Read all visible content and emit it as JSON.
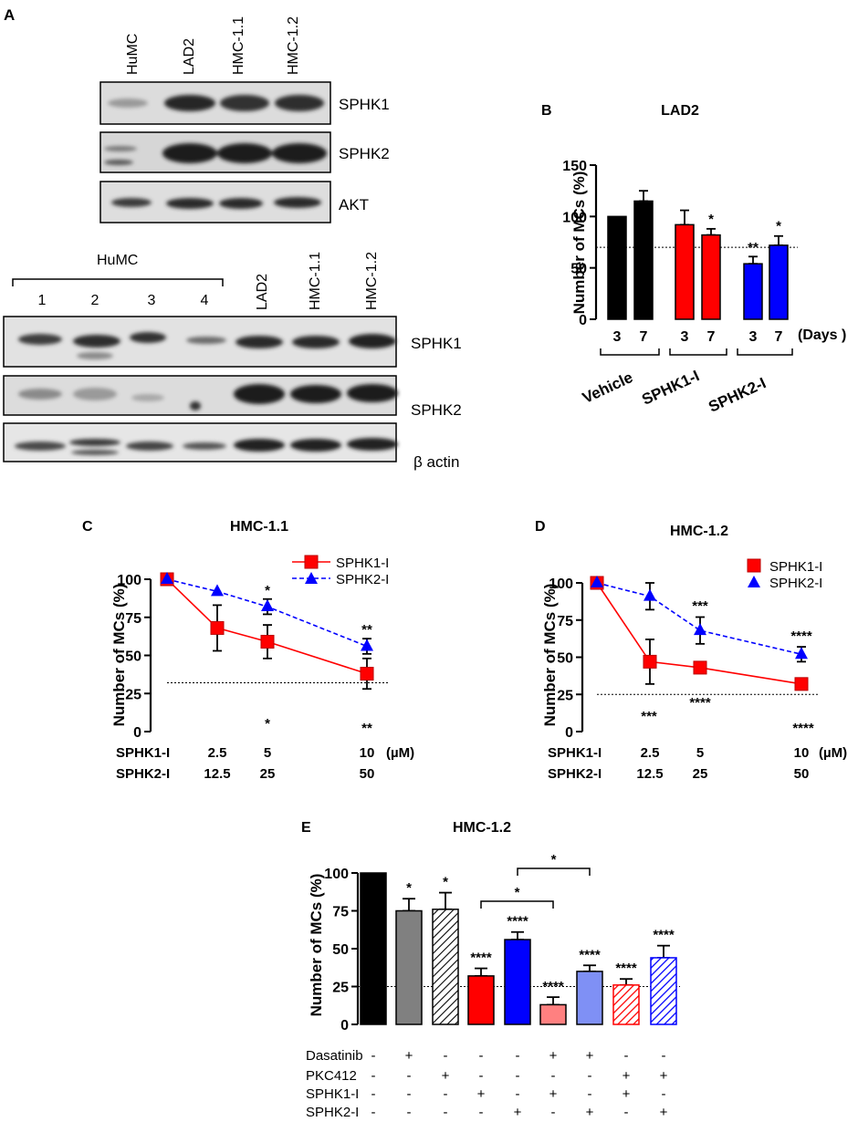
{
  "panel_letters": {
    "a": "A",
    "b": "B",
    "c": "C",
    "d": "D",
    "e": "E"
  },
  "blot_top": {
    "lanes": [
      "HuMC",
      "LAD2",
      "HMC-1.1",
      "HMC-1.2"
    ],
    "rows": [
      "SPHK1",
      "SPHK2",
      "AKT"
    ]
  },
  "blot_bottom": {
    "group_label": "HuMC",
    "group_lanes": [
      "1",
      "2",
      "3",
      "4"
    ],
    "cell_lanes": [
      "LAD2",
      "HMC-1.1",
      "HMC-1.2"
    ],
    "rows": [
      "SPHK1",
      "SPHK2",
      "β actin"
    ]
  },
  "chart_data": [
    {
      "id": "B",
      "type": "bar",
      "title": "LAD2",
      "ylabel": "Number of MCs (%)",
      "ylim": [
        0,
        150
      ],
      "yticks": [
        0,
        50,
        100,
        150
      ],
      "reference_line": 70,
      "x_unit_label": "(Days )",
      "groups": [
        "Vehicle",
        "SPHK1-I",
        "SPHK2-I"
      ],
      "categories": [
        "3",
        "7",
        "3",
        "7",
        "3",
        "7"
      ],
      "values": [
        100,
        115,
        92,
        82,
        54,
        72
      ],
      "errors": [
        0,
        10,
        14,
        6,
        7,
        9
      ],
      "annotations": [
        "",
        "",
        "",
        "*",
        "**",
        "*"
      ],
      "colors": [
        "#000000",
        "#000000",
        "#ff0000",
        "#ff0000",
        "#0000ff",
        "#0000ff"
      ]
    },
    {
      "id": "C",
      "type": "line",
      "title": "HMC-1.1",
      "ylabel": "Number of MCs (%)",
      "ylim": [
        0,
        100
      ],
      "yticks": [
        0,
        25,
        50,
        75,
        100
      ],
      "reference_line": 32,
      "x": [
        0,
        2.5,
        5,
        10
      ],
      "x_unit_label": "(µM)",
      "row_labels": [
        "SPHK1-I",
        "SPHK2-I"
      ],
      "row1": [
        "2.5",
        "5",
        "10"
      ],
      "row2": [
        "12.5",
        "25",
        "50"
      ],
      "series": [
        {
          "name": "SPHK1-I",
          "values": [
            100,
            68,
            59,
            38
          ],
          "errors": [
            0,
            15,
            11,
            10
          ],
          "color": "#ff0000",
          "annotations": [
            "",
            "",
            "*",
            "**"
          ]
        },
        {
          "name": "SPHK2-I",
          "values": [
            100,
            92,
            82,
            56
          ],
          "errors": [
            0,
            0,
            5,
            5
          ],
          "color": "#0000ff",
          "annotations": [
            "",
            "",
            "*",
            "**"
          ]
        }
      ]
    },
    {
      "id": "D",
      "type": "line",
      "title": "HMC-1.2",
      "ylabel": "Number of MCs (%)",
      "ylim": [
        0,
        100
      ],
      "yticks": [
        0,
        25,
        50,
        75,
        100
      ],
      "reference_line": 25,
      "x": [
        0,
        2.5,
        5,
        10
      ],
      "x_unit_label": "(µM)",
      "row_labels": [
        "SPHK1-I",
        "SPHK2-I"
      ],
      "row1": [
        "2.5",
        "5",
        "10"
      ],
      "row2": [
        "12.5",
        "25",
        "50"
      ],
      "series": [
        {
          "name": "SPHK1-I",
          "values": [
            100,
            47,
            43,
            32
          ],
          "errors": [
            0,
            15,
            3,
            2
          ],
          "color": "#ff0000",
          "annotations": [
            "",
            "***",
            "****",
            "****"
          ]
        },
        {
          "name": "SPHK2-I",
          "values": [
            100,
            91,
            68,
            52
          ],
          "errors": [
            0,
            9,
            9,
            5
          ],
          "color": "#0000ff",
          "annotations": [
            "",
            "",
            "***",
            "****"
          ]
        }
      ]
    },
    {
      "id": "E",
      "type": "bar",
      "title": "HMC-1.2",
      "ylabel": "Number of MCs (%)",
      "ylim": [
        0,
        100
      ],
      "yticks": [
        0,
        25,
        50,
        75,
        100
      ],
      "reference_line": 25,
      "values": [
        100,
        75,
        76,
        32,
        56,
        13,
        35,
        26,
        44
      ],
      "errors": [
        0,
        8,
        11,
        5,
        5,
        5,
        4,
        4,
        8
      ],
      "annotations": [
        "",
        "*",
        "*",
        "****",
        "****",
        "****",
        "****",
        "****",
        "****"
      ],
      "fills": [
        {
          "color": "#000000",
          "hatch": false
        },
        {
          "color": "#808080",
          "hatch": false
        },
        {
          "color": "#ffffff",
          "hatch": true
        },
        {
          "color": "#ff0000",
          "hatch": false
        },
        {
          "color": "#0000ff",
          "hatch": false
        },
        {
          "color": "#ff8080",
          "hatch": false
        },
        {
          "color": "#7f90f5",
          "hatch": false
        },
        {
          "color": "#ff0000",
          "hatch": true
        },
        {
          "color": "#0000ff",
          "hatch": true
        }
      ],
      "brackets": [
        {
          "from": 3,
          "to": 5,
          "label": "*"
        },
        {
          "from": 4,
          "to": 6,
          "label": "*"
        }
      ],
      "treatment_table": [
        {
          "label": "Dasatinib",
          "signs": [
            "-",
            "+",
            "-",
            "-",
            "-",
            "+",
            "+",
            "-",
            "-"
          ]
        },
        {
          "label": "PKC412",
          "signs": [
            "-",
            "-",
            "+",
            "-",
            "-",
            "-",
            "-",
            "+",
            "+"
          ]
        },
        {
          "label": "SPHK1-I",
          "signs": [
            "-",
            "-",
            "-",
            "+",
            "-",
            "+",
            "-",
            "+",
            "-"
          ]
        },
        {
          "label": "SPHK2-I",
          "signs": [
            "-",
            "-",
            "-",
            "-",
            "+",
            "-",
            "+",
            "-",
            "+"
          ]
        }
      ]
    }
  ]
}
